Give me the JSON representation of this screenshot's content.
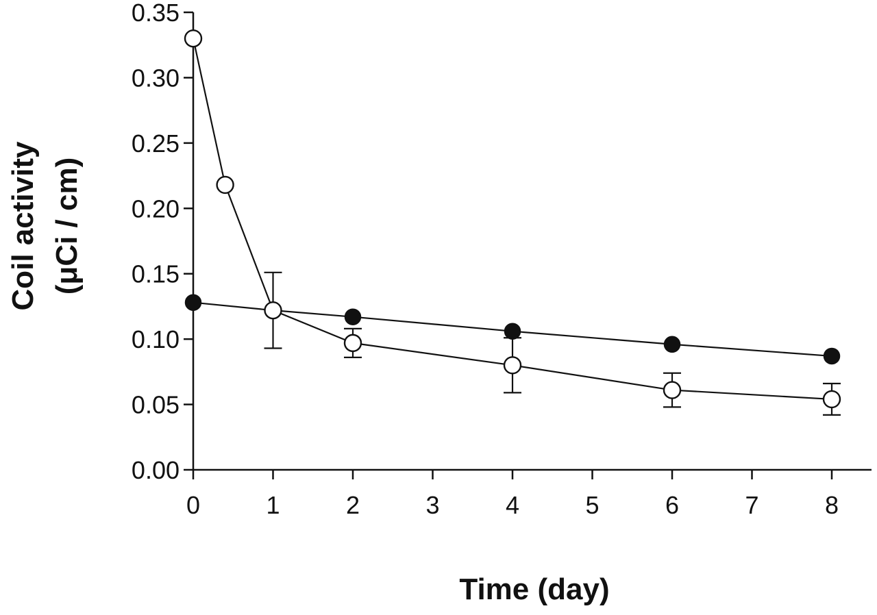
{
  "chart_data": {
    "type": "line",
    "xlabel": "Time (day)",
    "ylabel_lines": [
      "Coil activity",
      "(μCi / cm)"
    ],
    "xlim": [
      0,
      8.5
    ],
    "ylim": [
      0,
      0.35
    ],
    "x_ticks": [
      "0",
      "1",
      "2",
      "3",
      "4",
      "5",
      "6",
      "7",
      "8"
    ],
    "y_ticks": [
      "0.00",
      "0.05",
      "0.10",
      "0.15",
      "0.20",
      "0.25",
      "0.30",
      "0.35"
    ],
    "grid": false,
    "series": [
      {
        "marker": "filled-circle",
        "x": [
          0,
          1,
          2,
          4,
          6,
          8
        ],
        "y": [
          0.128,
          0.122,
          0.117,
          0.106,
          0.096,
          0.087
        ]
      },
      {
        "marker": "open-circle",
        "x": [
          0,
          0.4,
          1,
          2,
          4,
          6,
          8
        ],
        "y": [
          0.33,
          0.218,
          0.122,
          0.097,
          0.08,
          0.061,
          0.054
        ],
        "error": [
          0,
          0,
          0.029,
          0.011,
          0.021,
          0.013,
          0.012
        ]
      }
    ]
  }
}
